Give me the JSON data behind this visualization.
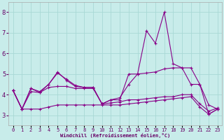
{
  "xlabel": "Windchill (Refroidissement éolien,°C)",
  "background_color": "#c8ecea",
  "grid_color": "#a8d8d5",
  "line_color": "#880088",
  "x": [
    0,
    1,
    2,
    3,
    4,
    5,
    6,
    7,
    8,
    9,
    10,
    11,
    12,
    13,
    14,
    15,
    16,
    17,
    18,
    19,
    20,
    21,
    22,
    23
  ],
  "series1": [
    4.2,
    3.3,
    4.3,
    4.1,
    4.5,
    5.1,
    4.7,
    4.4,
    4.35,
    4.35,
    3.55,
    3.75,
    3.75,
    5.0,
    5.0,
    7.1,
    6.5,
    8.0,
    5.5,
    5.3,
    5.3,
    4.5,
    3.05,
    3.3
  ],
  "series2": [
    4.2,
    3.3,
    4.3,
    4.15,
    4.5,
    5.05,
    4.75,
    4.45,
    4.35,
    4.35,
    3.55,
    3.75,
    3.85,
    4.5,
    5.0,
    5.05,
    5.1,
    5.25,
    5.3,
    5.3,
    4.5,
    4.5,
    3.5,
    3.3
  ],
  "series3": [
    4.2,
    3.3,
    4.15,
    4.1,
    4.35,
    4.4,
    4.4,
    4.3,
    4.3,
    4.3,
    3.55,
    3.6,
    3.65,
    3.75,
    3.75,
    3.8,
    3.85,
    3.9,
    3.9,
    4.0,
    4.0,
    3.55,
    3.2,
    3.35
  ],
  "series4": [
    4.2,
    3.3,
    3.3,
    3.3,
    3.4,
    3.5,
    3.5,
    3.5,
    3.5,
    3.5,
    3.5,
    3.5,
    3.5,
    3.55,
    3.6,
    3.65,
    3.7,
    3.75,
    3.8,
    3.85,
    3.9,
    3.4,
    3.05,
    3.3
  ],
  "ylim": [
    2.5,
    8.5
  ],
  "xlim": [
    -0.5,
    23.5
  ],
  "yticks": [
    3,
    4,
    5,
    6,
    7,
    8
  ],
  "xticks": [
    0,
    1,
    2,
    3,
    4,
    5,
    6,
    7,
    8,
    9,
    10,
    11,
    12,
    13,
    14,
    15,
    16,
    17,
    18,
    19,
    20,
    21,
    22,
    23
  ],
  "linewidth": 0.8,
  "markersize": 2.5,
  "tick_color": "#660066",
  "label_fontsize": 5.0,
  "ytick_fontsize": 6.0
}
